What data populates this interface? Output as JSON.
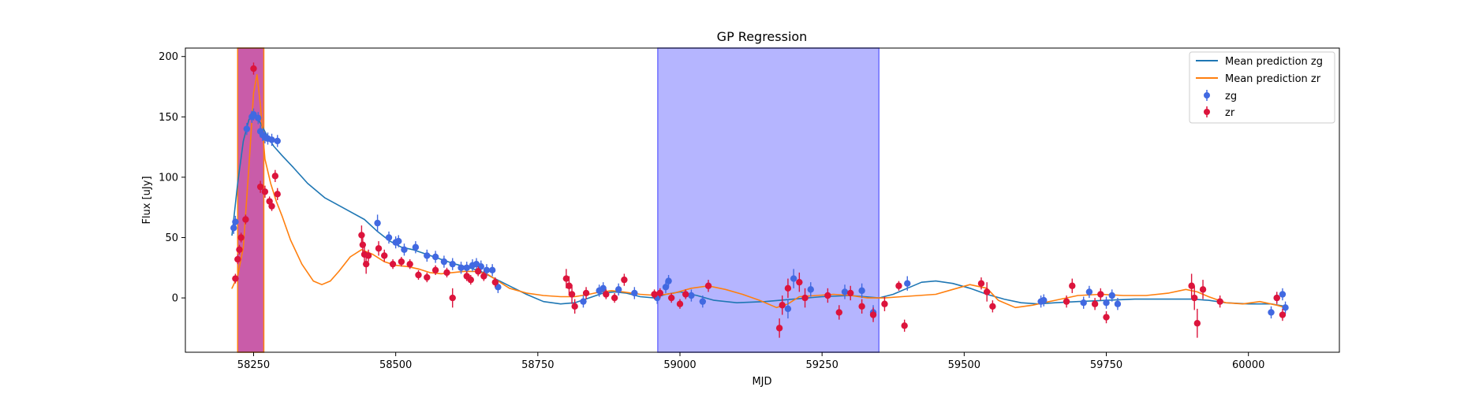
{
  "chart_data": {
    "type": "scatter",
    "title": "GP Regression",
    "xlabel": "MJD",
    "ylabel": "Flux [uJy]",
    "xlim": [
      58130,
      60160
    ],
    "ylim": [
      -45,
      207
    ],
    "xticks": [
      58250,
      58500,
      58750,
      59000,
      59250,
      59500,
      59750,
      60000
    ],
    "yticks": [
      0,
      50,
      100,
      150,
      200
    ],
    "legend_position": "top-right",
    "grid": false,
    "colors": {
      "zg_line": "#1f77b4",
      "zr_line": "#ff7f0e",
      "zg_points": "#4169e1",
      "zr_points": "#dc143c",
      "red_span": "#c0409a",
      "blue_span": "#a8a8ff"
    },
    "spans": [
      {
        "x0": 58222,
        "x1": 58268,
        "color": "#c0409a",
        "edge": "#ff7f0e"
      },
      {
        "x0": 58961,
        "x1": 59350,
        "color": "#a8a8ff",
        "edge": "#7070ff"
      }
    ],
    "series": [
      {
        "name": "Mean prediction zg",
        "kind": "line",
        "color": "#1f77b4",
        "x": [
          58212,
          58222,
          58232,
          58242,
          58252,
          58262,
          58272,
          58285,
          58300,
          58320,
          58345,
          58375,
          58410,
          58445,
          58468,
          58490,
          58510,
          58530,
          58555,
          58580,
          58605,
          58630,
          58650,
          58670,
          58700,
          58730,
          58760,
          58790,
          58815,
          58840,
          58865,
          58885,
          58905,
          58930,
          58955,
          58975,
          59000,
          59030,
          59060,
          59100,
          59150,
          59200,
          59250,
          59300,
          59350,
          59375,
          59400,
          59425,
          59450,
          59480,
          59510,
          59540,
          59570,
          59600,
          59630,
          59660,
          59700,
          59750,
          59800,
          59850,
          59900,
          59930,
          59960,
          60000,
          60040,
          60065
        ],
        "y": [
          52,
          95,
          130,
          148,
          151,
          145,
          136,
          126,
          118,
          108,
          95,
          83,
          74,
          65,
          55,
          47,
          42,
          40,
          36,
          32,
          28,
          25,
          22,
          17,
          10,
          3,
          -3,
          -5,
          -4,
          0,
          4,
          5,
          4,
          1,
          0,
          3,
          5,
          2,
          -2,
          -4,
          -3,
          -1,
          1,
          2,
          0,
          3,
          8,
          13,
          14,
          12,
          8,
          3,
          -1,
          -4,
          -5,
          -4,
          -3,
          -2,
          -1,
          -1,
          -1,
          -2,
          -4,
          -5,
          -5,
          -7
        ]
      },
      {
        "name": "Mean prediction zr",
        "kind": "line",
        "color": "#ff7f0e",
        "x": [
          58212,
          58222,
          58232,
          58242,
          58250,
          58256,
          58262,
          58270,
          58280,
          58290,
          58300,
          58315,
          58335,
          58355,
          58370,
          58385,
          58400,
          58420,
          58440,
          58460,
          58480,
          58500,
          58520,
          58540,
          58560,
          58580,
          58600,
          58620,
          58640,
          58660,
          58680,
          58700,
          58730,
          58760,
          58790,
          58815,
          58840,
          58860,
          58880,
          58900,
          58930,
          58960,
          58990,
          59020,
          59050,
          59080,
          59110,
          59140,
          59170,
          59190,
          59210,
          59240,
          59270,
          59300,
          59330,
          59360,
          59390,
          59420,
          59450,
          59480,
          59510,
          59540,
          59560,
          59590,
          59620,
          59660,
          59700,
          59740,
          59780,
          59820,
          59860,
          59890,
          59910,
          59930,
          59960,
          59990,
          60020,
          60050,
          60065
        ],
        "y": [
          8,
          18,
          42,
          110,
          170,
          185,
          160,
          115,
          95,
          80,
          68,
          48,
          28,
          14,
          11,
          14,
          22,
          34,
          40,
          36,
          30,
          27,
          26,
          24,
          21,
          20,
          21,
          22,
          22,
          20,
          14,
          8,
          4,
          2,
          1,
          1,
          3,
          5,
          6,
          5,
          3,
          2,
          4,
          8,
          10,
          7,
          3,
          -2,
          -8,
          -5,
          1,
          2,
          3,
          2,
          0,
          0,
          1,
          2,
          3,
          7,
          11,
          8,
          -2,
          -8,
          -6,
          -2,
          2,
          3,
          2,
          2,
          4,
          7,
          5,
          1,
          -4,
          -5,
          -3,
          -6,
          -8
        ]
      },
      {
        "name": "zg",
        "kind": "points",
        "color": "#4169e1",
        "x": [
          58215,
          58218,
          58238,
          58247,
          58250,
          58258,
          58262,
          58266,
          58270,
          58275,
          58282,
          58292,
          58468,
          58488,
          58500,
          58505,
          58515,
          58535,
          58555,
          58570,
          58585,
          58600,
          58615,
          58625,
          58635,
          58642,
          58650,
          58660,
          58670,
          58680,
          58830,
          58858,
          58865,
          58892,
          58920,
          58960,
          58975,
          58980,
          59020,
          59040,
          59190,
          59200,
          59230,
          59290,
          59320,
          59340,
          59400,
          59635,
          59640,
          59710,
          59720,
          59750,
          59760,
          59770,
          60040,
          60050,
          60060,
          60065
        ],
        "y": [
          58,
          63,
          140,
          150,
          152,
          149,
          138,
          135,
          133,
          132,
          131,
          130,
          62,
          50,
          46,
          47,
          40,
          42,
          35,
          34,
          30,
          28,
          25,
          25,
          27,
          28,
          26,
          23,
          23,
          9,
          -3,
          6,
          8,
          7,
          4,
          0,
          9,
          14,
          2,
          -3,
          -9,
          16,
          7,
          5,
          6,
          -12,
          12,
          -3,
          -2,
          -4,
          5,
          -4,
          2,
          -5,
          -12,
          0,
          3,
          -8
        ],
        "yerr": [
          5,
          5,
          5,
          5,
          5,
          5,
          5,
          5,
          5,
          5,
          5,
          5,
          7,
          5,
          5,
          5,
          5,
          5,
          5,
          5,
          5,
          5,
          5,
          5,
          5,
          5,
          5,
          5,
          5,
          5,
          5,
          5,
          5,
          5,
          5,
          5,
          5,
          5,
          5,
          5,
          8,
          8,
          6,
          6,
          6,
          6,
          6,
          5,
          5,
          5,
          5,
          5,
          5,
          5,
          5,
          5,
          5,
          5
        ]
      },
      {
        "name": "zr",
        "kind": "points",
        "color": "#dc143c",
        "x": [
          58218,
          58222,
          58225,
          58228,
          58236,
          58250,
          58262,
          58270,
          58278,
          58282,
          58288,
          58292,
          58440,
          58442,
          58445,
          58448,
          58452,
          58470,
          58480,
          58495,
          58510,
          58525,
          58540,
          58555,
          58570,
          58590,
          58600,
          58625,
          58632,
          58645,
          58655,
          58675,
          58800,
          58805,
          58810,
          58815,
          58835,
          58870,
          58885,
          58902,
          58955,
          58965,
          58985,
          59000,
          59010,
          59050,
          59175,
          59180,
          59190,
          59210,
          59220,
          59260,
          59280,
          59300,
          59320,
          59340,
          59360,
          59385,
          59395,
          59530,
          59540,
          59550,
          59680,
          59690,
          59730,
          59740,
          59750,
          59900,
          59905,
          59910,
          59920,
          59950,
          60050,
          60060
        ],
        "y": [
          16,
          32,
          40,
          50,
          65,
          190,
          92,
          88,
          80,
          76,
          101,
          86,
          52,
          44,
          36,
          28,
          35,
          41,
          35,
          28,
          30,
          28,
          19,
          17,
          23,
          21,
          0,
          18,
          15,
          22,
          18,
          13,
          16,
          10,
          3,
          -7,
          4,
          3,
          0,
          15,
          3,
          4,
          0,
          -5,
          3,
          10,
          -25,
          -6,
          8,
          13,
          0,
          2,
          -12,
          4,
          -7,
          -14,
          -5,
          10,
          -23,
          12,
          5,
          -7,
          -3,
          10,
          -5,
          3,
          -16,
          10,
          0,
          -21,
          7,
          -3,
          0,
          -14
        ],
        "yerr": [
          4,
          4,
          4,
          4,
          4,
          5,
          5,
          5,
          4,
          4,
          5,
          5,
          8,
          8,
          8,
          8,
          5,
          6,
          5,
          4,
          4,
          4,
          4,
          4,
          4,
          4,
          8,
          4,
          4,
          4,
          4,
          4,
          8,
          8,
          8,
          6,
          5,
          4,
          4,
          5,
          4,
          4,
          4,
          4,
          4,
          5,
          8,
          8,
          8,
          8,
          8,
          6,
          6,
          6,
          6,
          6,
          6,
          4,
          5,
          5,
          8,
          5,
          5,
          6,
          5,
          5,
          5,
          10,
          10,
          12,
          8,
          5,
          5,
          5
        ]
      }
    ]
  }
}
